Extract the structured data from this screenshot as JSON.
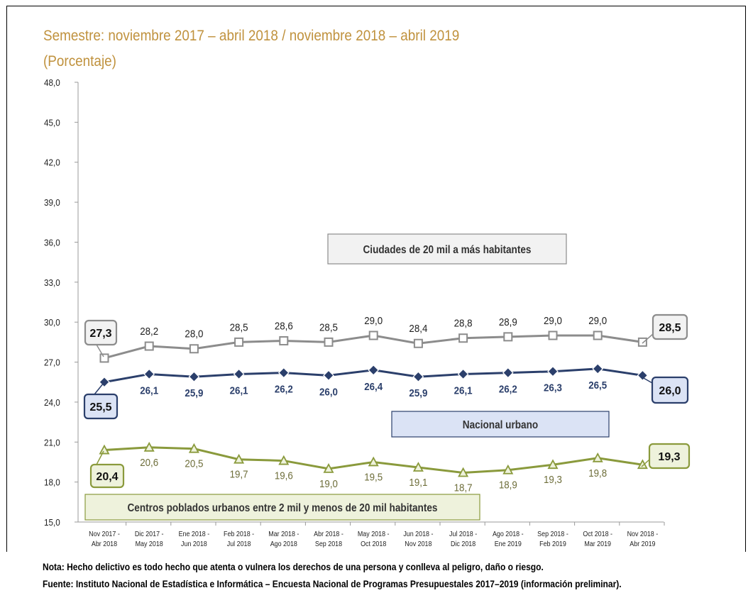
{
  "title": "Semestre: noviembre 2017 – abril 2018 / noviembre 2018 – abril 2019",
  "unit_label": "(Porcentaje)",
  "notes": {
    "nota": "Nota: Hecho delictivo es todo hecho que atenta o vulnera los derechos de una persona y conlleva al peligro, daño o riesgo.",
    "fuente": "Fuente: Instituto Nacional de Estadística e Informática – Encuesta Nacional de Programas Presupuestales 2017–2019 (información preliminar)."
  },
  "colors": {
    "ciudades": "#8c8c8c",
    "nacional": "#2b3f6b",
    "centros": "#8a9a3c",
    "title": "#c0923e"
  },
  "chart_data": {
    "type": "line",
    "categories": [
      [
        "Nov 2017 -",
        "Abr 2018"
      ],
      [
        "Dic 2017 -",
        "May 2018"
      ],
      [
        "Ene 2018 -",
        "Jun 2018"
      ],
      [
        "Feb 2018 -",
        "Jul 2018"
      ],
      [
        "Mar 2018 -",
        "Ago 2018"
      ],
      [
        "Abr 2018 -",
        "Sep 2018"
      ],
      [
        "May 2018 -",
        "Oct 2018"
      ],
      [
        "Jun 2018 -",
        "Nov 2018"
      ],
      [
        "Jul 2018 -",
        "Dic 2018"
      ],
      [
        "Ago 2018 -",
        "Ene 2019"
      ],
      [
        "Sep 2018 -",
        "Feb 2019"
      ],
      [
        "Oct 2018 -",
        "Mar 2019"
      ],
      [
        "Nov 2018 -",
        "Abr 2019"
      ]
    ],
    "ylim": [
      15,
      48
    ],
    "yticks": [
      "15,0",
      "18,0",
      "21,0",
      "24,0",
      "27,0",
      "30,0",
      "33,0",
      "36,0",
      "39,0",
      "42,0",
      "45,0",
      "48,0"
    ],
    "series": [
      {
        "name": "Ciudades de 20 mil a más habitantes",
        "key": "ciudades",
        "values": [
          27.3,
          28.2,
          28.0,
          28.5,
          28.6,
          28.5,
          29.0,
          28.4,
          28.8,
          28.9,
          29.0,
          29.0,
          28.5
        ],
        "labels": [
          "27,3",
          "28,2",
          "28,0",
          "28,5",
          "28,6",
          "28,5",
          "29,0",
          "28,4",
          "28,8",
          "28,9",
          "29,0",
          "29,0",
          "28,5"
        ],
        "marker": "square"
      },
      {
        "name": "Nacional urbano",
        "key": "nacional",
        "values": [
          25.5,
          26.1,
          25.9,
          26.1,
          26.2,
          26.0,
          26.4,
          25.9,
          26.1,
          26.2,
          26.3,
          26.5,
          26.0
        ],
        "labels": [
          "25,5",
          "26,1",
          "25,9",
          "26,1",
          "26,2",
          "26,0",
          "26,4",
          "25,9",
          "26,1",
          "26,2",
          "26,3",
          "26,5",
          "26,0"
        ],
        "marker": "diamond"
      },
      {
        "name": "Centros poblados urbanos entre 2 mil y menos de 20 mil habitantes",
        "key": "centros",
        "values": [
          20.4,
          20.6,
          20.5,
          19.7,
          19.6,
          19.0,
          19.5,
          19.1,
          18.7,
          18.9,
          19.3,
          19.8,
          19.3
        ],
        "labels": [
          "20,4",
          "20,6",
          "20,5",
          "19,7",
          "19,6",
          "19,0",
          "19,5",
          "19,1",
          "18,7",
          "18,9",
          "19,3",
          "19,8",
          "19,3"
        ],
        "marker": "triangle"
      }
    ]
  }
}
